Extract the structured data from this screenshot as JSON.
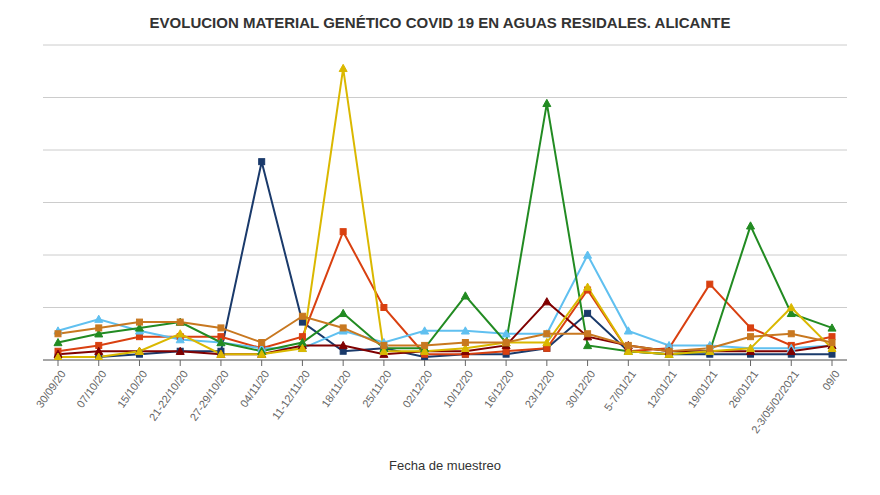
{
  "chart_data": {
    "type": "line",
    "title": "EVOLUCION  MATERIAL GENÉTICO COVID 19 EN AGUAS RESIDALES. ALICANTE",
    "xlabel": "Fecha de muestreo",
    "categories": [
      "30/09/20",
      "07/10/20",
      "15/10/20",
      "21-22/10/20",
      "27-29/10/20",
      "04/11/20",
      "11-12/11/20",
      "18/11/20",
      "25/11/20",
      "02/12/20",
      "10/12/20",
      "16/12/20",
      "23/12/20",
      "30/12/20",
      "5-7/01/21",
      "12/01/21",
      "19/01/21",
      "26/01/21",
      "2-3/05/02/2021",
      "09/0"
    ],
    "series": [
      {
        "color": "#1a3a6b",
        "marker": "square",
        "values": [
          1,
          1,
          2,
          3,
          3,
          68,
          13,
          3,
          4,
          1,
          2,
          2,
          4,
          16,
          3,
          2,
          2,
          2,
          2,
          2
        ]
      },
      {
        "color": "#d94010",
        "marker": "square",
        "values": [
          3,
          5,
          8,
          8,
          8,
          4,
          8,
          44,
          18,
          2,
          2,
          3,
          4,
          24,
          3,
          4,
          26,
          11,
          5,
          8
        ]
      },
      {
        "color": "#60c0f0",
        "marker": "triangle",
        "values": [
          10,
          14,
          10,
          7,
          6,
          4,
          4,
          10,
          6,
          10,
          10,
          9,
          9,
          36,
          10,
          5,
          5,
          4,
          4,
          5
        ]
      },
      {
        "color": "#800000",
        "marker": "triangle",
        "values": [
          2,
          3,
          3,
          3,
          2,
          2,
          5,
          5,
          2,
          3,
          3,
          5,
          20,
          8,
          5,
          3,
          3,
          3,
          3,
          5
        ]
      },
      {
        "color": "#228b22",
        "marker": "triangle",
        "values": [
          6,
          9,
          11,
          13,
          6,
          3,
          6,
          16,
          4,
          4,
          22,
          6,
          88,
          5,
          3,
          2,
          3,
          46,
          16,
          11
        ]
      },
      {
        "color": "#dab800",
        "marker": "triangle",
        "values": [
          1,
          1,
          3,
          9,
          2,
          2,
          4,
          100,
          3,
          3,
          4,
          6,
          6,
          25,
          3,
          2,
          3,
          4,
          18,
          4
        ]
      },
      {
        "color": "#c87820",
        "marker": "square",
        "values": [
          9,
          11,
          13,
          13,
          11,
          6,
          15,
          11,
          5,
          5,
          6,
          6,
          9,
          9,
          5,
          3,
          4,
          8,
          9,
          6
        ]
      }
    ],
    "ylim": [
      0,
      108
    ],
    "yticks": [
      0,
      18,
      36,
      54,
      72,
      90,
      108
    ],
    "grid": true,
    "tick_labels": "x"
  }
}
